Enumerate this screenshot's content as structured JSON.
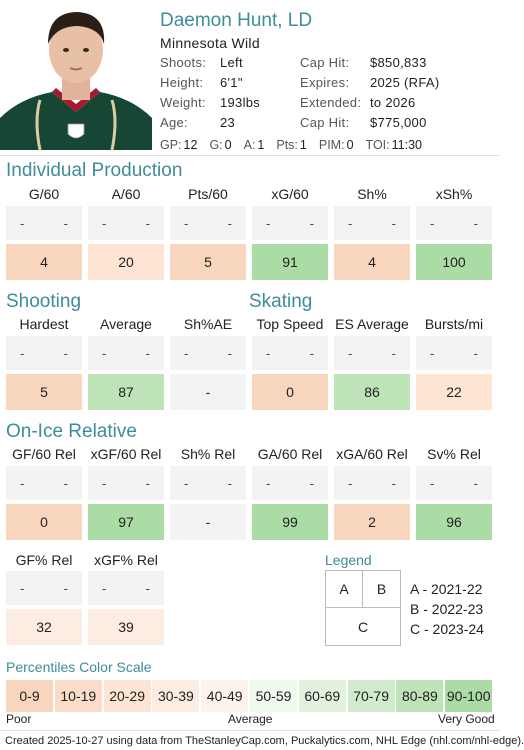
{
  "player": {
    "name": "Daemon Hunt, LD",
    "team": "Minnesota Wild",
    "bio_left": [
      {
        "key": "Shoots:",
        "value": "Left"
      },
      {
        "key": "Height:",
        "value": "6'1\""
      },
      {
        "key": "Weight:",
        "value": "193lbs"
      },
      {
        "key": "Age:",
        "value": "23"
      }
    ],
    "bio_right": [
      {
        "key": "Cap Hit:",
        "value": "$850,833"
      },
      {
        "key": "Expires:",
        "value": "2025 (RFA)"
      },
      {
        "key": "Extended:",
        "value": "to 2026"
      },
      {
        "key": "Cap Hit:",
        "value": "$775,000"
      }
    ],
    "statline": [
      {
        "key": "GP:",
        "value": "12"
      },
      {
        "key": "G:",
        "value": "0"
      },
      {
        "key": "A:",
        "value": "1"
      },
      {
        "key": "Pts:",
        "value": "1"
      },
      {
        "key": "PIM:",
        "value": "0"
      },
      {
        "key": "TOI:",
        "value": "11:30"
      }
    ]
  },
  "colors": {
    "title": "#3f8c9a",
    "scale": [
      "#f8d5bd",
      "#fadcc8",
      "#fde4d3",
      "#fdece1",
      "#fdf3ec",
      "#f1f8f0",
      "#e2f2df",
      "#d0ebcc",
      "#bfe3b9",
      "#acdca6"
    ]
  },
  "placeholder": "-",
  "sections": {
    "individual": {
      "title": "Individual Production",
      "columns": [
        {
          "label": "G/60",
          "value": "4",
          "pct": 4
        },
        {
          "label": "A/60",
          "value": "20",
          "pct": 20
        },
        {
          "label": "Pts/60",
          "value": "5",
          "pct": 5
        },
        {
          "label": "xG/60",
          "value": "91",
          "pct": 91
        },
        {
          "label": "Sh%",
          "value": "4",
          "pct": 4
        },
        {
          "label": "xSh%",
          "value": "100",
          "pct": 100
        }
      ]
    },
    "shooting": {
      "title": "Shooting",
      "columns": [
        {
          "label": "Hardest",
          "value": "5",
          "pct": 5
        },
        {
          "label": "Average",
          "value": "87",
          "pct": 87
        },
        {
          "label": "Sh%AE",
          "value": "-",
          "pct": null
        }
      ]
    },
    "skating": {
      "title": "Skating",
      "columns": [
        {
          "label": "Top Speed",
          "value": "0",
          "pct": 0
        },
        {
          "label": "ES Average",
          "value": "86",
          "pct": 86
        },
        {
          "label": "Bursts/mi",
          "value": "22",
          "pct": 22
        }
      ]
    },
    "onice": {
      "title": "On-Ice Relative",
      "columns": [
        {
          "label": "GF/60 Rel",
          "value": "0",
          "pct": 0
        },
        {
          "label": "xGF/60 Rel",
          "value": "97",
          "pct": 97
        },
        {
          "label": "Sh% Rel",
          "value": "-",
          "pct": null
        },
        {
          "label": "GA/60 Rel",
          "value": "99",
          "pct": 99
        },
        {
          "label": "xGA/60 Rel",
          "value": "2",
          "pct": 2
        },
        {
          "label": "Sv% Rel",
          "value": "96",
          "pct": 96
        }
      ],
      "columns2": [
        {
          "label": "GF% Rel",
          "value": "32",
          "pct": 32
        },
        {
          "label": "xGF% Rel",
          "value": "39",
          "pct": 39
        }
      ]
    }
  },
  "legend": {
    "title": "Legend",
    "a": "A",
    "b": "B",
    "c": "C",
    "items": [
      "A - 2021-22",
      "B - 2022-23",
      "C - 2023-24"
    ]
  },
  "scale": {
    "title": "Percentiles Color Scale",
    "labels": [
      "0-9",
      "10-19",
      "20-29",
      "30-39",
      "40-49",
      "50-59",
      "60-69",
      "70-79",
      "80-89",
      "90-100"
    ],
    "poor": "Poor",
    "average": "Average",
    "very_good": "Very Good"
  },
  "footer": "Created 2025-10-27 using data from TheStanleyCap.com, Puckalytics.com, NHL Edge (nhl.com/nhl-edge)."
}
